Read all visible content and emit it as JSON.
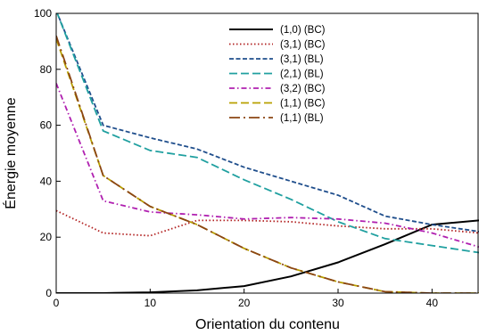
{
  "chart_data": {
    "type": "line",
    "title": "",
    "xlabel": "Orientation du contenu",
    "ylabel": "Énergie moyenne",
    "xlim": [
      0,
      45
    ],
    "ylim": [
      0,
      100
    ],
    "xticks": [
      0,
      10,
      20,
      30,
      40
    ],
    "yticks": [
      0,
      20,
      40,
      60,
      80,
      100
    ],
    "grid": false,
    "legend_position": "top-right",
    "x": [
      0,
      5,
      10,
      15,
      20,
      25,
      30,
      35,
      40,
      45
    ],
    "series": [
      {
        "name": "(1,0) (BC)",
        "color": "#000000",
        "dash": "solid",
        "values": [
          0,
          0,
          0.3,
          1,
          2.5,
          6,
          11,
          17.5,
          24.5,
          26
        ]
      },
      {
        "name": "(3,1) (BC)",
        "color": "#b22222",
        "dash": "dotted",
        "values": [
          29.5,
          21.5,
          20.5,
          26,
          26,
          25.5,
          24,
          23,
          23,
          21.5
        ]
      },
      {
        "name": "(3,1) (BL)",
        "color": "#1f4e8c",
        "dash": "dashed",
        "values": [
          101,
          60,
          55.5,
          51.5,
          45,
          40,
          35,
          27.5,
          24.5,
          22
        ]
      },
      {
        "name": "(2,1) (BL)",
        "color": "#20a0a0",
        "dash": "longdash",
        "values": [
          101,
          58,
          51,
          48.5,
          40.5,
          33.5,
          25.5,
          19.5,
          17,
          14.5
        ]
      },
      {
        "name": "(3,2) (BC)",
        "color": "#b020b0",
        "dash": "dashdot",
        "values": [
          75,
          33,
          29,
          28,
          26.5,
          27,
          26.5,
          25,
          21.5,
          16.5
        ]
      },
      {
        "name": "(1,1) (BC)",
        "color": "#b8a000",
        "dash": "longdash",
        "values": [
          91,
          42,
          31,
          24.5,
          16,
          9,
          4,
          0.5,
          0,
          0
        ]
      },
      {
        "name": "(1,1) (BL)",
        "color": "#8b4513",
        "dash": "longdashdot",
        "values": [
          92,
          42,
          31,
          24.5,
          16,
          9,
          4,
          0.5,
          0,
          0
        ]
      }
    ]
  }
}
